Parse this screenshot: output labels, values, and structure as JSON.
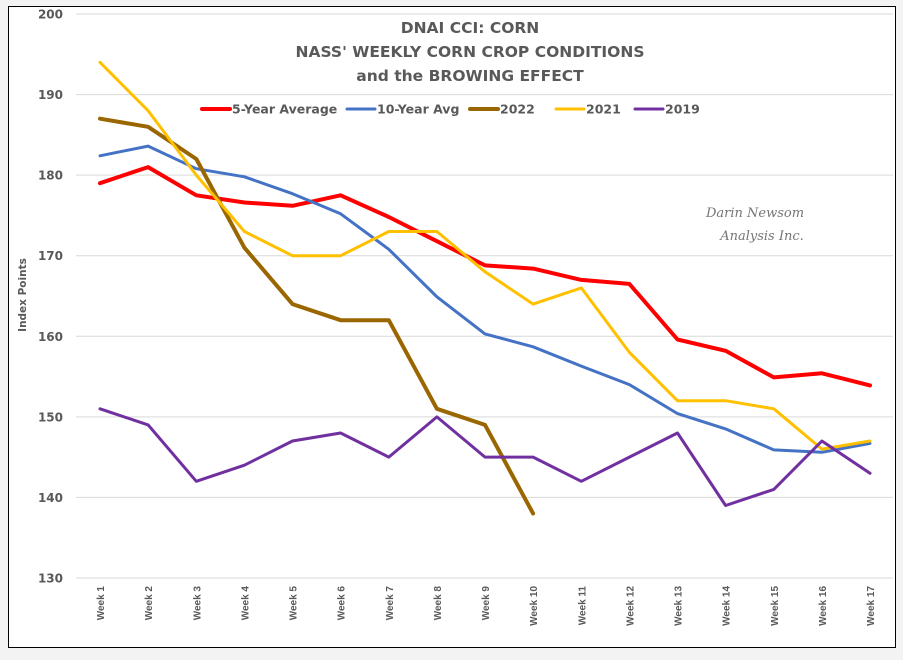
{
  "chart_data": {
    "type": "line",
    "title": [
      "DNAI CCI: CORN",
      "NASS' WEEKLY CORN CROP CONDITIONS",
      "and the BROWING EFFECT"
    ],
    "xlabel": "",
    "ylabel": "Index Points",
    "ylim": [
      130,
      200
    ],
    "yticks": [
      130,
      140,
      150,
      160,
      170,
      180,
      190,
      200
    ],
    "grid": true,
    "legend_position": "top",
    "categories": [
      "Week 1",
      "Week 2",
      "Week 3",
      "Week 4",
      "Week 5",
      "Week 6",
      "Week 7",
      "Week 8",
      "Week 9",
      "Week 10",
      "Week 11",
      "Week 12",
      "Week 13",
      "Week 14",
      "Week 15",
      "Week 16",
      "Week 17"
    ],
    "series": [
      {
        "name": "5-Year Average",
        "color": "#ff0000",
        "width": "thick",
        "values": [
          179,
          181,
          177.5,
          176.6,
          176.2,
          177.5,
          174.8,
          171.8,
          168.8,
          168.4,
          167,
          166.5,
          159.6,
          158.2,
          154.9,
          155.4,
          153.9
        ]
      },
      {
        "name": "10-Year Avg",
        "color": "#4472c4",
        "width": "normal",
        "values": [
          182.4,
          183.6,
          180.8,
          179.8,
          177.7,
          175.2,
          170.8,
          164.9,
          160.3,
          158.7,
          156.3,
          154,
          150.4,
          148.5,
          145.9,
          145.6,
          146.7
        ]
      },
      {
        "name": "2022",
        "color": "#996600",
        "width": "thick",
        "values": [
          187,
          186,
          182,
          171,
          164,
          162,
          162,
          151,
          149,
          138,
          null,
          null,
          null,
          null,
          null,
          null,
          null
        ]
      },
      {
        "name": "2021",
        "color": "#ffc000",
        "width": "normal",
        "values": [
          194,
          188,
          180,
          173,
          170,
          170,
          173,
          173,
          168,
          164,
          166,
          158,
          152,
          152,
          151,
          146,
          147
        ]
      },
      {
        "name": "2019",
        "color": "#7030a0",
        "width": "normal",
        "values": [
          151,
          149,
          142,
          144,
          147,
          148,
          145,
          150,
          145,
          145,
          142,
          145,
          148,
          139,
          141,
          147,
          143
        ]
      }
    ],
    "annotations": [
      "Darin Newsom",
      "Analysis Inc."
    ]
  }
}
